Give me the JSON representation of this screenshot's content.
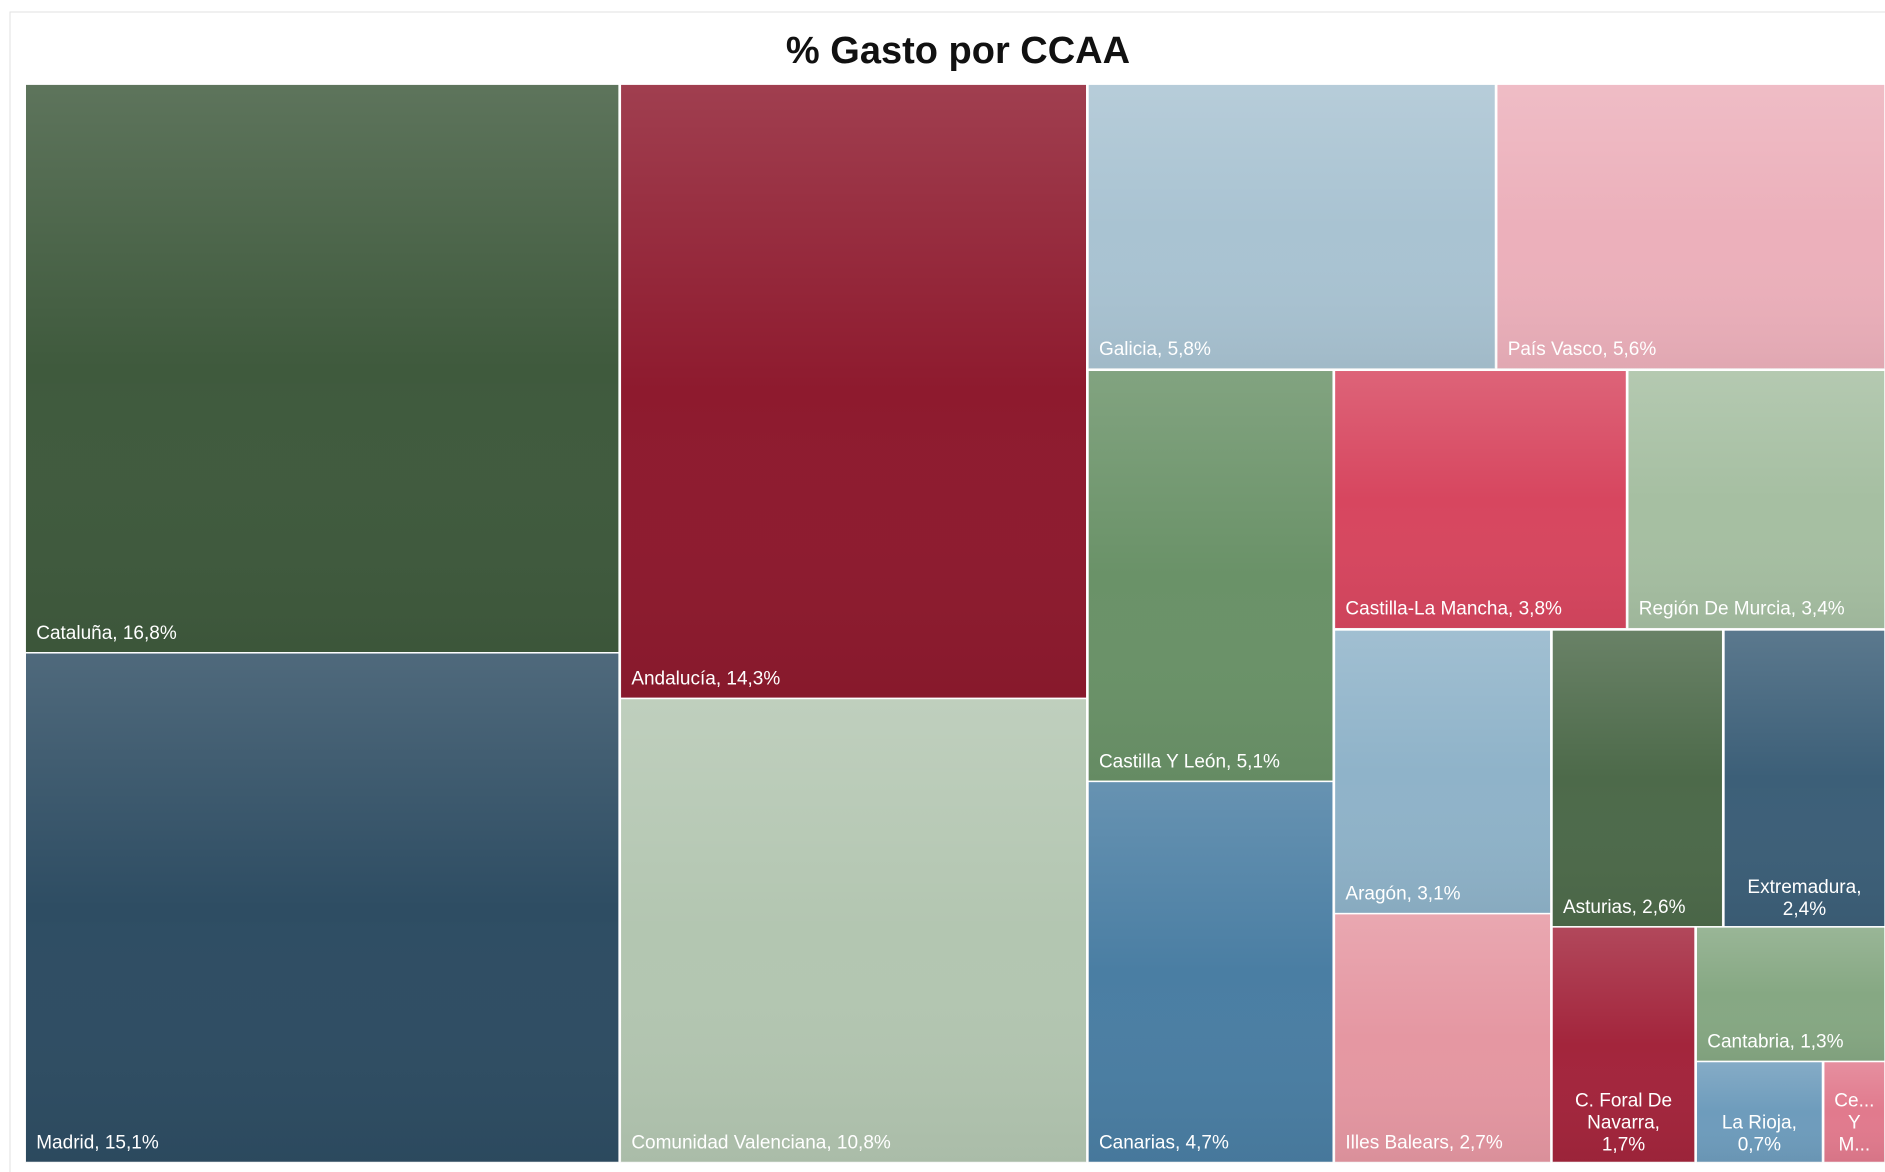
{
  "chart_data": {
    "type": "treemap",
    "title": "% Gasto por CCAA",
    "labels": [
      "Cataluña, 16,8%",
      "Madrid, 15,1%",
      "Andalucía, 14,3%",
      "Comunidad Valenciana, 10,8%",
      "Galicia, 5,8%",
      "País Vasco, 5,6%",
      "Castilla Y León, 5,1%",
      "Canarias, 4,7%",
      "Castilla-La Mancha, 3,8%",
      "Región De Murcia, 3,4%",
      "Aragón, 3,1%",
      "Illes Balears, 2,7%",
      "Asturias, 2,6%",
      [
        "Extremadura,",
        "2,4%"
      ],
      [
        "C. Foral De",
        "Navarra,",
        "1,7%"
      ],
      "Cantabria, 1,3%",
      [
        "La Rioja,",
        "0,7%"
      ],
      [
        "Ce...",
        "Y",
        "M..."
      ]
    ],
    "values": [
      16.8,
      15.1,
      14.3,
      10.8,
      5.8,
      5.6,
      5.1,
      4.7,
      3.8,
      3.4,
      3.1,
      2.7,
      2.6,
      2.4,
      1.7,
      1.3,
      0.7,
      0.3
    ],
    "colors": [
      "#3f5a3d",
      "#2e4d63",
      "#8e1a2e",
      "#b3c6b1",
      "#a9c3d2",
      "#ecb0bb",
      "#6a9268",
      "#4a7ea3",
      "#d7465f",
      "#a6bfa2",
      "#8fb3c9",
      "#e597a2",
      "#4d6a4a",
      "#3c5f78",
      "#a3253c",
      "#86a883",
      "#6e9cbc",
      "#e17a8d"
    ]
  }
}
